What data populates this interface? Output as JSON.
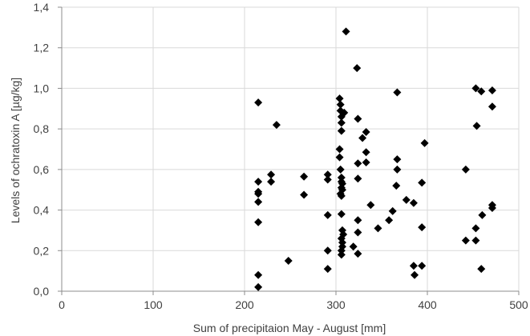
{
  "chart_data": {
    "type": "scatter",
    "xlabel": "Sum of precipitaion May - August [mm]",
    "ylabel": "Levels of ochratoxin A [µg/kg]",
    "xlim": [
      0,
      500
    ],
    "ylim": [
      0,
      1.4
    ],
    "x_ticks": [
      0,
      100,
      200,
      300,
      400,
      500
    ],
    "y_ticks": [
      0.0,
      0.2,
      0.4,
      0.6,
      0.8,
      1.0,
      1.2,
      1.4
    ],
    "x_tick_labels": [
      "0",
      "100",
      "200",
      "300",
      "400",
      "500"
    ],
    "y_tick_labels": [
      "0,0",
      "0,2",
      "0,4",
      "0,6",
      "0,8",
      "1,0",
      "1,2",
      "1,4"
    ],
    "grid": true,
    "legend": false,
    "marker": "diamond",
    "marker_color": "#000000",
    "series": [
      {
        "points": [
          [
            215,
            0.93
          ],
          [
            215,
            0.54
          ],
          [
            215,
            0.49
          ],
          [
            215,
            0.48
          ],
          [
            215,
            0.44
          ],
          [
            215,
            0.34
          ],
          [
            215,
            0.08
          ],
          [
            215,
            0.02
          ],
          [
            229,
            0.575
          ],
          [
            229,
            0.54
          ],
          [
            235,
            0.82
          ],
          [
            248,
            0.15
          ],
          [
            265,
            0.565
          ],
          [
            265,
            0.475
          ],
          [
            291,
            0.575
          ],
          [
            291,
            0.55
          ],
          [
            291,
            0.375
          ],
          [
            291,
            0.2
          ],
          [
            291,
            0.11
          ],
          [
            304,
            0.95
          ],
          [
            305,
            0.92
          ],
          [
            305,
            0.89
          ],
          [
            306,
            0.86
          ],
          [
            306,
            0.83
          ],
          [
            306,
            0.79
          ],
          [
            304,
            0.7
          ],
          [
            304,
            0.66
          ],
          [
            305,
            0.6
          ],
          [
            306,
            0.56
          ],
          [
            306,
            0.54
          ],
          [
            307,
            0.53
          ],
          [
            306,
            0.51
          ],
          [
            307,
            0.5
          ],
          [
            305,
            0.48
          ],
          [
            306,
            0.47
          ],
          [
            306,
            0.38
          ],
          [
            307,
            0.3
          ],
          [
            308,
            0.28
          ],
          [
            306,
            0.26
          ],
          [
            307,
            0.24
          ],
          [
            307,
            0.22
          ],
          [
            306,
            0.2
          ],
          [
            306,
            0.18
          ],
          [
            309,
            0.88
          ],
          [
            311,
            1.28
          ],
          [
            323,
            1.1
          ],
          [
            324,
            0.85
          ],
          [
            324,
            0.63
          ],
          [
            324,
            0.555
          ],
          [
            324,
            0.35
          ],
          [
            324,
            0.29
          ],
          [
            319,
            0.22
          ],
          [
            324,
            0.185
          ],
          [
            329,
            0.755
          ],
          [
            333,
            0.785
          ],
          [
            333,
            0.685
          ],
          [
            333,
            0.635
          ],
          [
            338,
            0.425
          ],
          [
            346,
            0.31
          ],
          [
            358,
            0.35
          ],
          [
            362,
            0.395
          ],
          [
            366,
            0.52
          ],
          [
            367,
            0.98
          ],
          [
            367,
            0.65
          ],
          [
            367,
            0.6
          ],
          [
            377,
            0.45
          ],
          [
            385,
            0.435
          ],
          [
            385,
            0.125
          ],
          [
            386,
            0.08
          ],
          [
            394,
            0.535
          ],
          [
            394,
            0.315
          ],
          [
            394,
            0.125
          ],
          [
            397,
            0.73
          ],
          [
            442,
            0.6
          ],
          [
            442,
            0.25
          ],
          [
            453,
            1.0
          ],
          [
            454,
            0.815
          ],
          [
            453,
            0.31
          ],
          [
            453,
            0.25
          ],
          [
            459,
            0.985
          ],
          [
            460,
            0.375
          ],
          [
            459,
            0.11
          ],
          [
            471,
            0.99
          ],
          [
            471,
            0.91
          ],
          [
            471,
            0.425
          ],
          [
            471,
            0.41
          ]
        ]
      }
    ]
  }
}
